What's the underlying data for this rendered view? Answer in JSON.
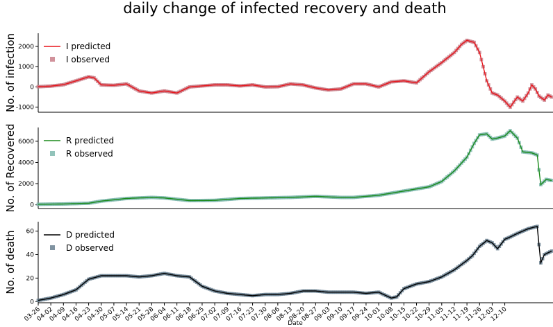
{
  "chart_data": {
    "type": "line",
    "title": "daily change of infected recovery and death",
    "xlabel": "Date",
    "x_ticks": [
      "03-26",
      "04-02",
      "04-09",
      "04-16",
      "04-23",
      "04-30",
      "05-07",
      "05-14",
      "05-21",
      "05-28",
      "06-04",
      "06-11",
      "06-18",
      "06-25",
      "07-02",
      "07-09",
      "07-16",
      "07-23",
      "07-30",
      "08-06",
      "08-13",
      "08-20",
      "08-27",
      "09-03",
      "09-10",
      "09-17",
      "09-24",
      "10-01",
      "10-08",
      "10-15",
      "10-22",
      "10-29",
      "11-05",
      "11-12",
      "11-19",
      "11-26",
      "12-03",
      "12-10"
    ],
    "panels": [
      {
        "id": "infection",
        "ylabel": "No. of infection",
        "ylim": [
          -1250,
          2650
        ],
        "yticks": [
          -1000,
          0,
          1000,
          2000
        ],
        "legend": [
          "I predicted",
          "I observed"
        ],
        "colors": {
          "line": "#e8141a",
          "marker": "#c97f8a"
        },
        "anchors": [
          [
            0,
            10
          ],
          [
            7,
            40
          ],
          [
            14,
            110
          ],
          [
            21,
            300
          ],
          [
            28,
            500
          ],
          [
            31,
            450
          ],
          [
            35,
            100
          ],
          [
            42,
            80
          ],
          [
            49,
            150
          ],
          [
            56,
            -200
          ],
          [
            63,
            -300
          ],
          [
            70,
            -200
          ],
          [
            77,
            -300
          ],
          [
            84,
            0
          ],
          [
            91,
            50
          ],
          [
            98,
            100
          ],
          [
            105,
            100
          ],
          [
            112,
            50
          ],
          [
            119,
            100
          ],
          [
            126,
            0
          ],
          [
            133,
            10
          ],
          [
            140,
            150
          ],
          [
            147,
            100
          ],
          [
            154,
            -50
          ],
          [
            161,
            -150
          ],
          [
            168,
            -100
          ],
          [
            175,
            150
          ],
          [
            182,
            150
          ],
          [
            189,
            0
          ],
          [
            196,
            250
          ],
          [
            203,
            300
          ],
          [
            210,
            200
          ],
          [
            217,
            750
          ],
          [
            224,
            1200
          ],
          [
            231,
            1700
          ],
          [
            235,
            2100
          ],
          [
            238,
            2300
          ],
          [
            242,
            2200
          ],
          [
            245,
            1700
          ],
          [
            249,
            300
          ],
          [
            252,
            -300
          ],
          [
            255,
            -400
          ],
          [
            259,
            -700
          ],
          [
            262,
            -1000
          ],
          [
            266,
            -500
          ],
          [
            269,
            -700
          ],
          [
            272,
            -300
          ],
          [
            274,
            100
          ],
          [
            276,
            -100
          ],
          [
            278,
            -450
          ],
          [
            281,
            -650
          ],
          [
            283,
            -400
          ],
          [
            285,
            -500
          ]
        ]
      },
      {
        "id": "recovered",
        "ylabel": "No. of Recovered",
        "ylim": [
          -350,
          7300
        ],
        "yticks": [
          0,
          2000,
          4000,
          6000
        ],
        "legend": [
          "R predicted",
          "R observed"
        ],
        "colors": {
          "line": "#1a8a1a",
          "marker": "#7fb8ae"
        },
        "anchors": [
          [
            0,
            50
          ],
          [
            14,
            80
          ],
          [
            28,
            150
          ],
          [
            35,
            350
          ],
          [
            49,
            600
          ],
          [
            63,
            700
          ],
          [
            70,
            650
          ],
          [
            84,
            400
          ],
          [
            98,
            420
          ],
          [
            112,
            600
          ],
          [
            126,
            650
          ],
          [
            140,
            700
          ],
          [
            154,
            800
          ],
          [
            168,
            700
          ],
          [
            175,
            700
          ],
          [
            189,
            900
          ],
          [
            203,
            1300
          ],
          [
            217,
            1700
          ],
          [
            224,
            2200
          ],
          [
            231,
            3200
          ],
          [
            238,
            4500
          ],
          [
            242,
            5800
          ],
          [
            245,
            6600
          ],
          [
            249,
            6700
          ],
          [
            252,
            6200
          ],
          [
            255,
            6300
          ],
          [
            259,
            6500
          ],
          [
            262,
            7000
          ],
          [
            266,
            6300
          ],
          [
            269,
            5000
          ],
          [
            274,
            4900
          ],
          [
            277,
            4700
          ],
          [
            279,
            1900
          ],
          [
            282,
            2400
          ],
          [
            285,
            2300
          ]
        ]
      },
      {
        "id": "death",
        "ylabel": "No. of death",
        "ylim": [
          -1,
          68
        ],
        "yticks": [
          0,
          20,
          40,
          60
        ],
        "legend": [
          "D predicted",
          "D observed"
        ],
        "colors": {
          "line": "#000000",
          "marker": "#6a8090"
        },
        "anchors": [
          [
            0,
            1
          ],
          [
            7,
            3
          ],
          [
            14,
            6
          ],
          [
            21,
            10
          ],
          [
            28,
            19
          ],
          [
            35,
            22
          ],
          [
            42,
            22
          ],
          [
            49,
            22
          ],
          [
            56,
            21
          ],
          [
            63,
            22
          ],
          [
            70,
            24
          ],
          [
            77,
            22
          ],
          [
            84,
            21
          ],
          [
            91,
            13
          ],
          [
            98,
            9
          ],
          [
            105,
            7
          ],
          [
            112,
            6
          ],
          [
            119,
            5
          ],
          [
            126,
            6
          ],
          [
            133,
            6
          ],
          [
            140,
            7
          ],
          [
            147,
            9
          ],
          [
            154,
            9
          ],
          [
            161,
            8
          ],
          [
            168,
            8
          ],
          [
            175,
            8
          ],
          [
            182,
            7
          ],
          [
            189,
            8
          ],
          [
            196,
            3
          ],
          [
            199,
            4
          ],
          [
            203,
            11
          ],
          [
            210,
            15
          ],
          [
            217,
            17
          ],
          [
            224,
            21
          ],
          [
            231,
            27
          ],
          [
            238,
            35
          ],
          [
            241,
            39
          ],
          [
            245,
            47
          ],
          [
            249,
            52
          ],
          [
            252,
            50
          ],
          [
            255,
            45
          ],
          [
            259,
            53
          ],
          [
            262,
            55
          ],
          [
            266,
            58
          ],
          [
            272,
            62
          ],
          [
            277,
            64
          ],
          [
            279,
            33
          ],
          [
            281,
            40
          ],
          [
            285,
            43
          ]
        ]
      }
    ]
  }
}
